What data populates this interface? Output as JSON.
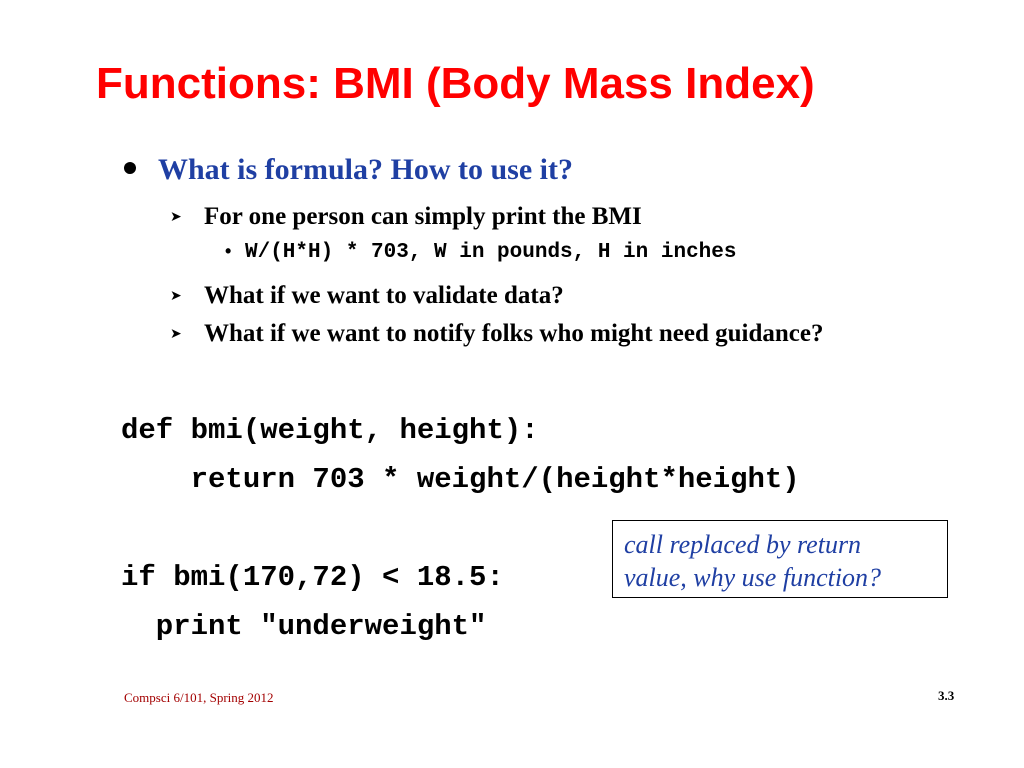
{
  "slide": {
    "title": "Functions: BMI (Body Mass Index)",
    "bullets": {
      "level1": "What is formula? How to use it?",
      "sub1": "For one person can simply print the BMI",
      "formula": "W/(H*H) * 703, W in pounds, H in inches",
      "sub2": "What if we want to validate data?",
      "sub3": "What if we want to notify folks who might need guidance?"
    },
    "code": {
      "line1": "def bmi(weight, height):",
      "line2": "    return 703 * weight/(height*height)",
      "line3": "if bmi(170,72) < 18.5:",
      "line4": "  print \"underweight\""
    },
    "callout": {
      "line1": "call replaced by return",
      "line2": "value, why use function?"
    },
    "footer": {
      "course": "Compsci 6/101, Spring 2012",
      "page": "3.3"
    }
  },
  "colors": {
    "title": "#ff0000",
    "accent_blue": "#1f3fa3",
    "footer": "#a30000"
  }
}
